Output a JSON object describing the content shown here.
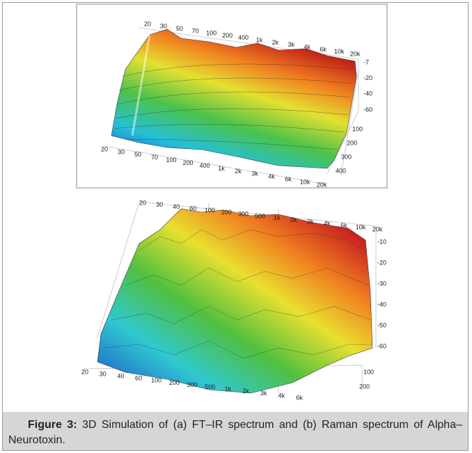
{
  "figure": {
    "panel_a": {
      "top_labels": [
        "20",
        "30",
        "50",
        "70",
        "100",
        "200",
        "400",
        "1k",
        "2k",
        "3k",
        "4k",
        "6k",
        "10k",
        "20k"
      ],
      "bottom_labels": [
        "20",
        "30",
        "50",
        "70",
        "100",
        "200",
        "400",
        "1k",
        "2k",
        "3k",
        "4k",
        "6k",
        "10k",
        "20k"
      ],
      "level_labels": [
        "-7",
        "-20",
        "-40",
        "-60"
      ],
      "depth_labels": [
        "100",
        "200",
        "300",
        "400"
      ]
    },
    "panel_b": {
      "top_labels": [
        "20",
        "30",
        "40",
        "60",
        "100",
        "200",
        "300",
        "500",
        "1k",
        "2k",
        "3k",
        "4k",
        "6k",
        "10k",
        "20k"
      ],
      "bottom_labels": [
        "20",
        "30",
        "40",
        "60",
        "100",
        "200",
        "300",
        "500",
        "1k",
        "2k",
        "3k",
        "4k",
        "6k"
      ],
      "level_labels": [
        "-10",
        "-20",
        "-30",
        "-40",
        "-50",
        "-60"
      ],
      "depth_labels": [
        "100",
        "200"
      ]
    },
    "caption": {
      "label": "Figure 3:",
      "text": "3D Simulation of (a) FT–IR spectrum and (b) Raman spectrum of Alpha–Neurotoxin."
    }
  }
}
